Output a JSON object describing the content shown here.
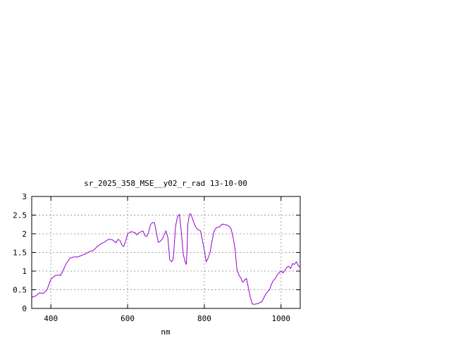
{
  "chart_data": {
    "type": "line",
    "title": "sr_2025_358_MSE__y02_r_rad 13-10-00",
    "xlabel": "nm",
    "ylabel": "",
    "xlim": [
      350,
      1050
    ],
    "ylim": [
      0,
      3
    ],
    "grid": true,
    "x_ticks": [
      400,
      600,
      800,
      1000
    ],
    "x_tick_labels": [
      "400",
      "600",
      "800",
      "1000"
    ],
    "y_ticks": [
      0,
      0.5,
      1,
      1.5,
      2,
      2.5,
      3
    ],
    "y_tick_labels": [
      "0",
      "0.5",
      "1",
      "1.5",
      "2",
      "2.5",
      "3"
    ],
    "series_color": "#9400d3",
    "series": [
      {
        "x": [
          350,
          360,
          370,
          380,
          390,
          395,
          400,
          405,
          410,
          420,
          425,
          430,
          440,
          450,
          460,
          470,
          480,
          490,
          500,
          510,
          520,
          530,
          540,
          550,
          560,
          570,
          575,
          580,
          585,
          590,
          595,
          600,
          610,
          620,
          625,
          630,
          640,
          645,
          650,
          655,
          660,
          665,
          670,
          680,
          685,
          690,
          700,
          705,
          710,
          715,
          718,
          720,
          722,
          725,
          730,
          735,
          740,
          745,
          750,
          753,
          755,
          757,
          760,
          762,
          765,
          770,
          775,
          780,
          785,
          790,
          800,
          805,
          810,
          815,
          820,
          825,
          830,
          835,
          840,
          845,
          850,
          855,
          860,
          865,
          870,
          875,
          880,
          885,
          890,
          895,
          900,
          905,
          910,
          915,
          920,
          925,
          930,
          935,
          940,
          950,
          960,
          965,
          970,
          975,
          980,
          985,
          990,
          995,
          1000,
          1005,
          1010,
          1015,
          1020,
          1025,
          1030,
          1035,
          1040,
          1045,
          1050
        ],
        "values": [
          0.3,
          0.33,
          0.42,
          0.4,
          0.5,
          0.65,
          0.78,
          0.83,
          0.87,
          0.9,
          0.88,
          0.98,
          1.2,
          1.35,
          1.38,
          1.38,
          1.42,
          1.46,
          1.52,
          1.55,
          1.65,
          1.73,
          1.78,
          1.85,
          1.84,
          1.76,
          1.85,
          1.82,
          1.7,
          1.66,
          1.8,
          2.0,
          2.06,
          2.02,
          1.97,
          2.03,
          2.08,
          1.95,
          1.93,
          2.05,
          2.25,
          2.3,
          2.3,
          1.77,
          1.8,
          1.85,
          2.08,
          1.9,
          1.3,
          1.25,
          1.3,
          1.45,
          1.75,
          2.2,
          2.45,
          2.52,
          2.05,
          1.45,
          1.25,
          1.18,
          1.55,
          2.25,
          2.45,
          2.53,
          2.53,
          2.38,
          2.23,
          2.15,
          2.1,
          2.08,
          1.57,
          1.25,
          1.35,
          1.5,
          1.8,
          2.05,
          2.15,
          2.18,
          2.18,
          2.25,
          2.26,
          2.24,
          2.23,
          2.2,
          2.13,
          1.9,
          1.6,
          1.05,
          0.9,
          0.82,
          0.7,
          0.76,
          0.8,
          0.55,
          0.3,
          0.12,
          0.11,
          0.12,
          0.13,
          0.18,
          0.38,
          0.45,
          0.5,
          0.65,
          0.75,
          0.8,
          0.9,
          0.95,
          1.0,
          0.95,
          1.02,
          1.1,
          1.13,
          1.07,
          1.2,
          1.18,
          1.25,
          1.15,
          1.1
        ]
      }
    ]
  }
}
